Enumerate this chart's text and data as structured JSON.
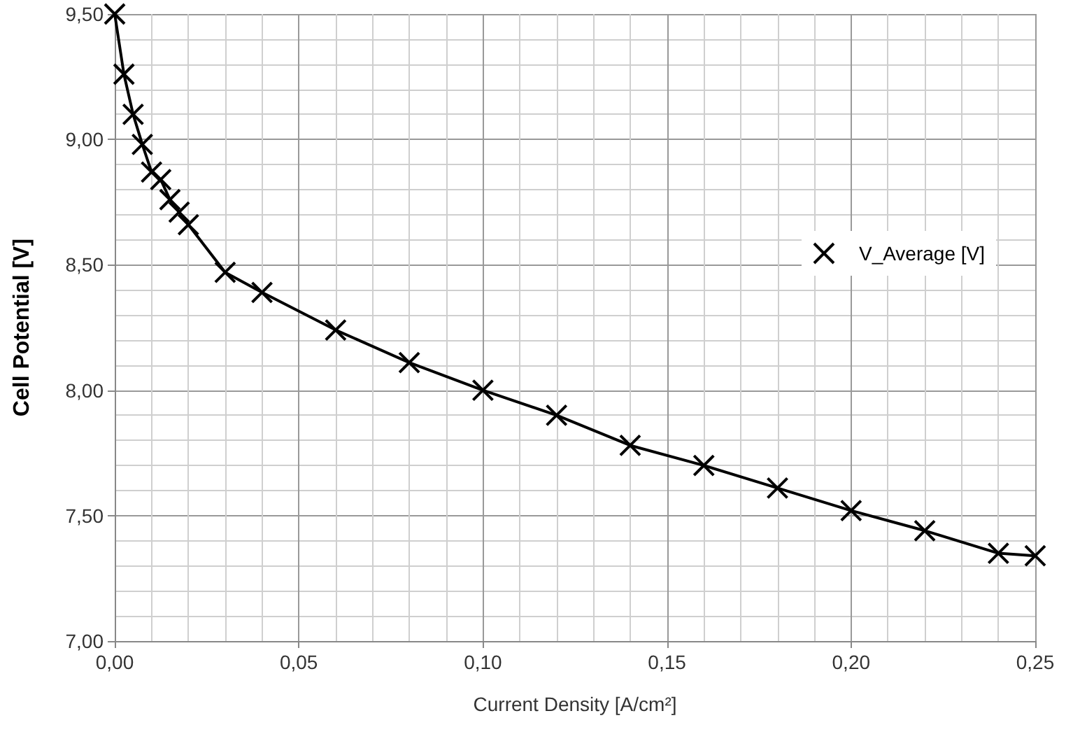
{
  "chart_data": {
    "type": "line",
    "xlabel": "Current Density [A/cm²]",
    "ylabel": "Cell Potential [V]",
    "x": [
      0,
      0.0025,
      0.005,
      0.0075,
      0.01,
      0.0125,
      0.015,
      0.0175,
      0.02,
      0.03,
      0.04,
      0.06,
      0.08,
      0.1,
      0.12,
      0.14,
      0.16,
      0.18,
      0.2,
      0.22,
      0.24,
      0.25
    ],
    "series": [
      {
        "name": "V_Average [V]",
        "color": "#000000",
        "values": [
          9.5,
          9.26,
          9.1,
          8.98,
          8.87,
          8.84,
          8.76,
          8.71,
          8.66,
          8.47,
          8.39,
          8.24,
          8.11,
          8.0,
          7.9,
          7.78,
          7.7,
          7.61,
          7.52,
          7.44,
          7.35,
          7.34
        ]
      }
    ],
    "xlim": [
      0,
      0.25
    ],
    "xticks": [
      {
        "value": 0,
        "label": "0,00"
      },
      {
        "value": 0.05,
        "label": "0,05"
      },
      {
        "value": 0.1,
        "label": "0,10"
      },
      {
        "value": 0.15,
        "label": "0,15"
      },
      {
        "value": 0.2,
        "label": "0,20"
      },
      {
        "value": 0.25,
        "label": "0,25"
      }
    ],
    "ylim": [
      7,
      9.5
    ],
    "yticks": [
      {
        "value": 7,
        "label": "7,00"
      },
      {
        "value": 7.5,
        "label": "7,50"
      },
      {
        "value": 8,
        "label": "8,00"
      },
      {
        "value": 8.5,
        "label": "8,50"
      },
      {
        "value": 9,
        "label": "9,00"
      },
      {
        "value": 9.5,
        "label": "9,50"
      }
    ],
    "grid": true,
    "legend": "right",
    "marker": "cross",
    "line_style": "solid"
  }
}
